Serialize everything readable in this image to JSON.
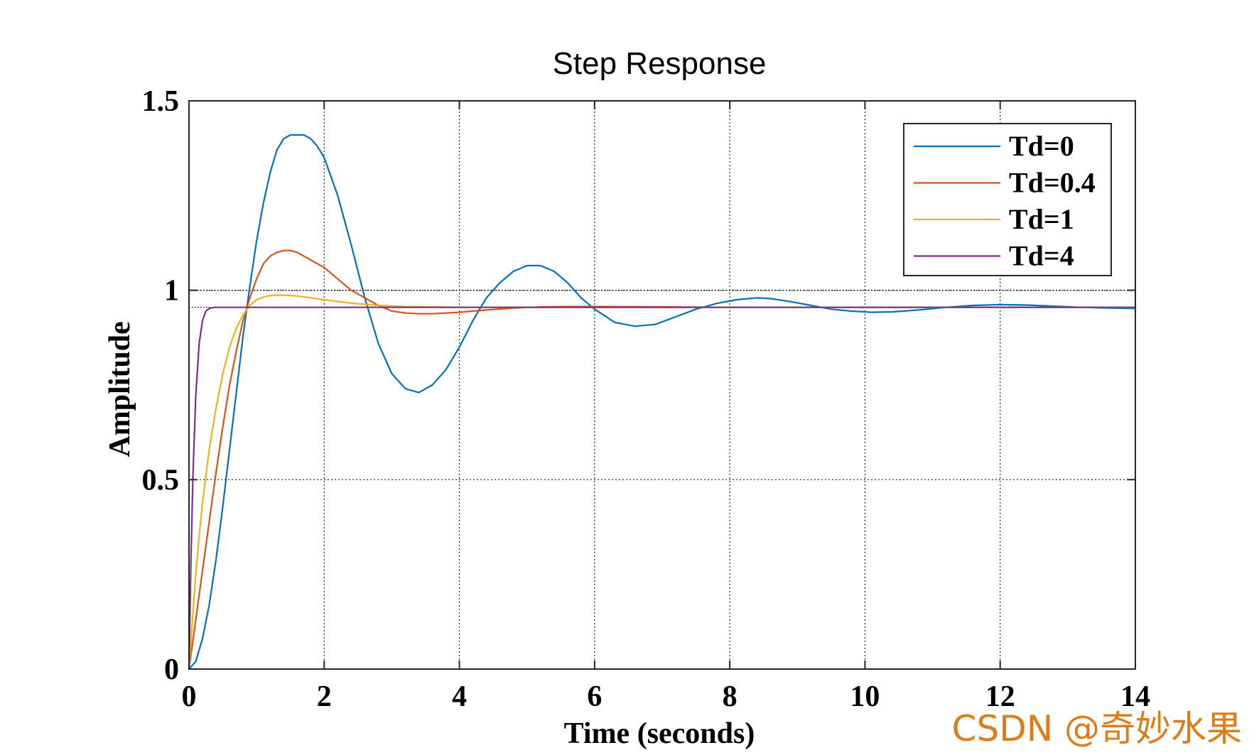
{
  "chart_data": {
    "type": "line",
    "title": "Step Response",
    "xlabel": "Time (seconds)",
    "ylabel": "Amplitude",
    "xlim": [
      0,
      14
    ],
    "ylim": [
      0,
      1.5
    ],
    "xticks": [
      0,
      2,
      4,
      6,
      8,
      10,
      12,
      14
    ],
    "yticks": [
      0,
      0.5,
      1,
      1.5
    ],
    "xtick_labels": [
      "0",
      "2",
      "4",
      "6",
      "8",
      "10",
      "12",
      "14"
    ],
    "ytick_labels": [
      "0",
      "0.5",
      "1",
      "1.5"
    ],
    "grid": true,
    "legend_position": "top-right",
    "reference_lines": [
      1,
      0.955
    ],
    "series": [
      {
        "name": "Td=0",
        "color": "#0072BD",
        "x": [
          0,
          0.1,
          0.2,
          0.3,
          0.4,
          0.5,
          0.6,
          0.7,
          0.8,
          0.9,
          1.0,
          1.1,
          1.2,
          1.3,
          1.4,
          1.5,
          1.6,
          1.7,
          1.8,
          1.9,
          2.0,
          2.2,
          2.4,
          2.6,
          2.8,
          3.0,
          3.2,
          3.4,
          3.6,
          3.8,
          4.0,
          4.2,
          4.4,
          4.6,
          4.8,
          5.0,
          5.2,
          5.4,
          5.6,
          5.8,
          6.0,
          6.3,
          6.6,
          6.9,
          7.2,
          7.5,
          7.8,
          8.1,
          8.4,
          8.6,
          8.9,
          9.2,
          9.5,
          9.8,
          10.1,
          10.4,
          10.8,
          11.2,
          11.6,
          12.0,
          12.4,
          12.8,
          13.2,
          13.6,
          14.0
        ],
        "y": [
          0,
          0.02,
          0.08,
          0.17,
          0.29,
          0.43,
          0.58,
          0.73,
          0.88,
          1.01,
          1.13,
          1.23,
          1.31,
          1.37,
          1.4,
          1.41,
          1.41,
          1.41,
          1.4,
          1.38,
          1.35,
          1.25,
          1.12,
          0.98,
          0.86,
          0.78,
          0.74,
          0.73,
          0.75,
          0.79,
          0.85,
          0.92,
          0.98,
          1.02,
          1.05,
          1.065,
          1.065,
          1.05,
          1.02,
          0.98,
          0.95,
          0.915,
          0.905,
          0.91,
          0.93,
          0.95,
          0.965,
          0.975,
          0.98,
          0.978,
          0.97,
          0.96,
          0.95,
          0.945,
          0.942,
          0.943,
          0.948,
          0.955,
          0.96,
          0.962,
          0.961,
          0.958,
          0.955,
          0.953,
          0.952
        ]
      },
      {
        "name": "Td=0.4",
        "color": "#D95319",
        "x": [
          0,
          0.1,
          0.2,
          0.3,
          0.4,
          0.5,
          0.6,
          0.7,
          0.8,
          0.9,
          1.0,
          1.1,
          1.2,
          1.3,
          1.4,
          1.5,
          1.6,
          1.7,
          1.8,
          2.0,
          2.2,
          2.4,
          2.6,
          2.8,
          3.0,
          3.2,
          3.4,
          3.6,
          3.8,
          4.0,
          4.4,
          4.8,
          5.2,
          5.6,
          6.0,
          7.0,
          8.0,
          10.0,
          12.0,
          14.0
        ],
        "y": [
          0,
          0.13,
          0.26,
          0.39,
          0.52,
          0.64,
          0.75,
          0.84,
          0.92,
          0.98,
          1.03,
          1.07,
          1.09,
          1.1,
          1.105,
          1.105,
          1.1,
          1.09,
          1.08,
          1.06,
          1.03,
          1.0,
          0.98,
          0.96,
          0.945,
          0.94,
          0.938,
          0.938,
          0.94,
          0.942,
          0.948,
          0.953,
          0.956,
          0.957,
          0.957,
          0.956,
          0.955,
          0.955,
          0.955,
          0.955
        ]
      },
      {
        "name": "Td=1",
        "color": "#EDB120",
        "x": [
          0,
          0.05,
          0.1,
          0.15,
          0.2,
          0.3,
          0.4,
          0.5,
          0.6,
          0.7,
          0.8,
          0.9,
          1.0,
          1.1,
          1.2,
          1.3,
          1.4,
          1.6,
          1.8,
          2.0,
          2.4,
          2.8,
          3.2,
          3.6,
          4.0,
          5.0,
          6.0,
          8.0,
          10.0,
          14.0
        ],
        "y": [
          0,
          0.13,
          0.25,
          0.35,
          0.44,
          0.58,
          0.69,
          0.78,
          0.85,
          0.9,
          0.935,
          0.96,
          0.975,
          0.982,
          0.986,
          0.987,
          0.987,
          0.985,
          0.98,
          0.975,
          0.966,
          0.96,
          0.957,
          0.956,
          0.955,
          0.955,
          0.955,
          0.955,
          0.955,
          0.955
        ]
      },
      {
        "name": "Td=4",
        "color": "#7E2F8E",
        "x": [
          0,
          0.03,
          0.06,
          0.1,
          0.15,
          0.2,
          0.25,
          0.3,
          0.35,
          0.4,
          0.5,
          0.6,
          1.0,
          2.0,
          4.0,
          8.0,
          14.0
        ],
        "y": [
          0,
          0.3,
          0.52,
          0.72,
          0.86,
          0.92,
          0.945,
          0.952,
          0.954,
          0.955,
          0.955,
          0.955,
          0.955,
          0.955,
          0.955,
          0.955,
          0.955
        ]
      }
    ]
  },
  "watermark": {
    "text": "CSDN @奇妙水果",
    "color": "#E07B1A"
  }
}
